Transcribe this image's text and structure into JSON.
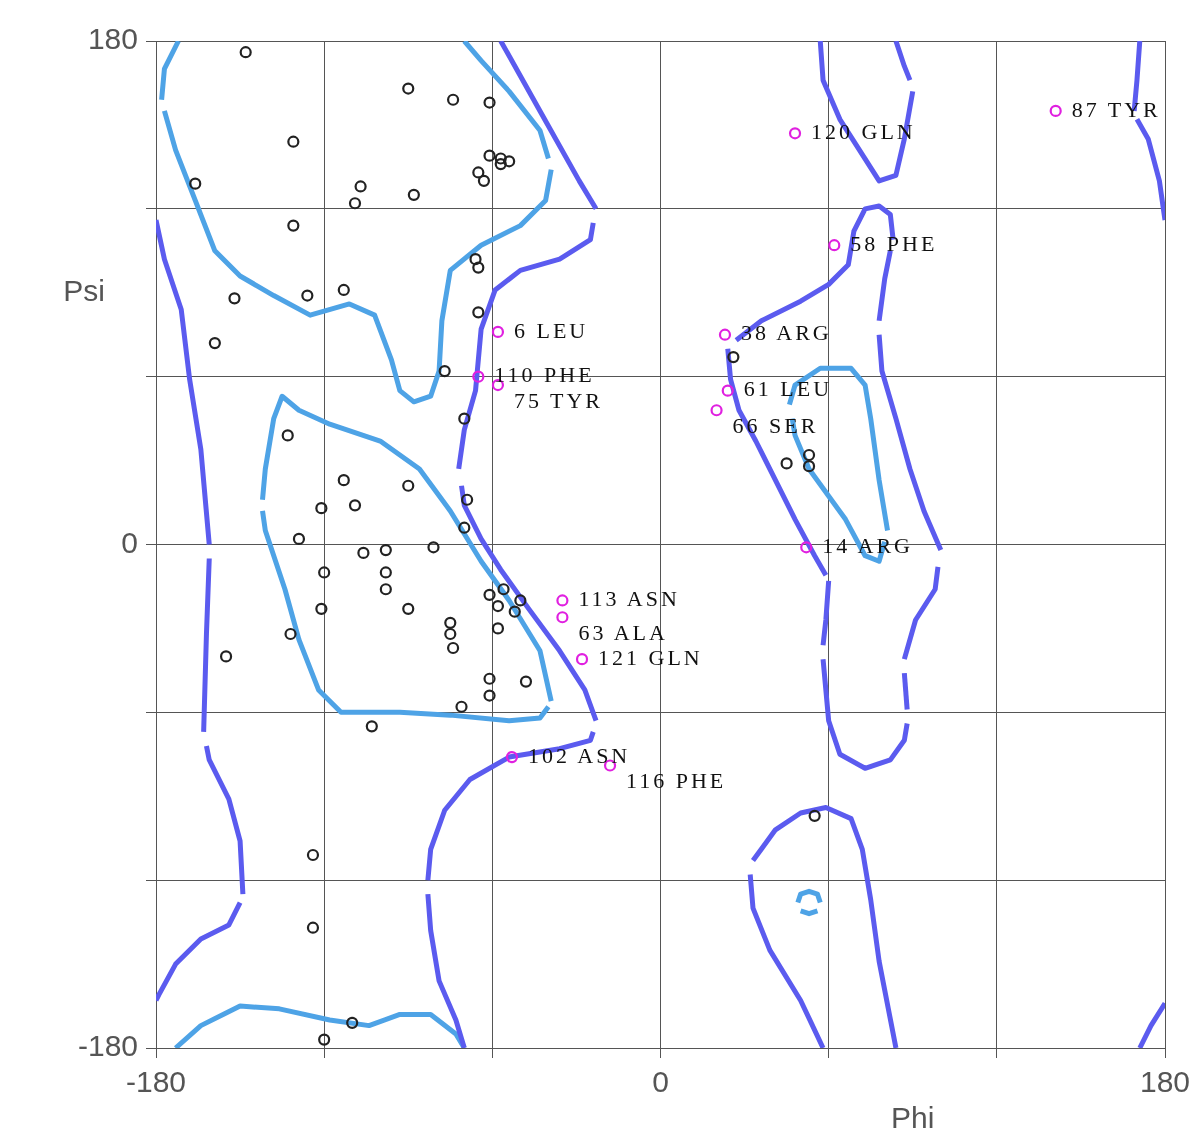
{
  "chart_data": {
    "type": "scatter",
    "xlabel": "Phi",
    "ylabel": "Psi",
    "xlim": [
      -180,
      180
    ],
    "ylim": [
      -180,
      180
    ],
    "xticks": [
      -180,
      {
        "value": -120,
        "label": null
      },
      {
        "value": -60,
        "label": null
      },
      0,
      {
        "value": 60,
        "label": null
      },
      {
        "value": 120,
        "label": null
      },
      180
    ],
    "yticks": [
      -180,
      {
        "value": -120,
        "label": null
      },
      {
        "value": -60,
        "label": null
      },
      0,
      {
        "value": 60,
        "label": null
      },
      {
        "value": 120,
        "label": null
      },
      180
    ],
    "grid": true,
    "legend": false,
    "series": [
      {
        "type": "line",
        "marker": "none",
        "color": "#5b5bef",
        "x": [
          -57,
          -43,
          -29,
          -23
        ],
        "values": [
          180,
          155,
          130,
          120
        ]
      },
      {
        "type": "line",
        "marker": "none",
        "color": "#5b5bef",
        "x": [
          -24,
          -25,
          -36,
          -50,
          -59,
          -64,
          -66,
          -70,
          -72
        ],
        "values": [
          115,
          109,
          102,
          98,
          91,
          77,
          55,
          41,
          27
        ]
      },
      {
        "type": "line",
        "marker": "none",
        "color": "#5b5bef",
        "x": [
          -71,
          -70,
          -64,
          -57,
          -47,
          -36,
          -27,
          -23
        ],
        "values": [
          21,
          14,
          2,
          -9,
          -23,
          -38,
          -52,
          -63
        ]
      },
      {
        "type": "line",
        "marker": "none",
        "color": "#5b5bef",
        "x": [
          -24,
          -25,
          -36,
          -54,
          -68,
          -77,
          -82,
          -83
        ],
        "values": [
          -67,
          -70,
          -73,
          -76,
          -84,
          -95,
          -109,
          -120
        ]
      },
      {
        "type": "line",
        "marker": "none",
        "color": "#5b5bef",
        "x": [
          -83,
          -82,
          -79,
          -73,
          -70
        ],
        "values": [
          -125,
          -138,
          -156,
          -170,
          -180
        ]
      },
      {
        "type": "line",
        "marker": "none",
        "color": "#5b5bef",
        "x": [
          -180,
          -177,
          -171,
          -168,
          -164,
          -161
        ],
        "values": [
          116,
          102,
          84,
          59,
          34,
          0
        ]
      },
      {
        "type": "line",
        "marker": "none",
        "color": "#5b5bef",
        "x": [
          -161,
          -162,
          -163
        ],
        "values": [
          -5,
          -32,
          -67
        ]
      },
      {
        "type": "line",
        "marker": "none",
        "color": "#5b5bef",
        "x": [
          -162,
          -161,
          -154,
          -150,
          -149
        ],
        "values": [
          -72,
          -77,
          -91,
          -106,
          -125
        ]
      },
      {
        "type": "line",
        "marker": "none",
        "color": "#5b5bef",
        "x": [
          -150,
          -154,
          -164,
          -173,
          -179,
          -180
        ],
        "values": [
          -128,
          -136,
          -141,
          -150,
          -161,
          -163
        ]
      },
      {
        "type": "line",
        "marker": "none",
        "color": "#5b5bef",
        "x": [
          57,
          58,
          64,
          71,
          78,
          84,
          87,
          90
        ],
        "values": [
          180,
          166,
          152,
          141,
          130,
          132,
          145,
          162
        ]
      },
      {
        "type": "line",
        "marker": "none",
        "color": "#5b5bef",
        "x": [
          89,
          87,
          84
        ],
        "values": [
          166,
          171,
          180
        ]
      },
      {
        "type": "line",
        "marker": "none",
        "color": "#5b5bef",
        "x": [
          171,
          170,
          169
        ],
        "values": [
          180,
          166,
          155
        ]
      },
      {
        "type": "line",
        "marker": "none",
        "color": "#5b5bef",
        "x": [
          170,
          174,
          178,
          180
        ],
        "values": [
          152,
          145,
          130,
          116
        ]
      },
      {
        "type": "line",
        "marker": "none",
        "color": "#5b5bef",
        "x": [
          171,
          175,
          180
        ],
        "values": [
          -180,
          -172,
          -164
        ]
      },
      {
        "type": "line",
        "marker": "none",
        "color": "#5b5bef",
        "x": [
          27,
          36,
          50,
          60,
          67,
          69,
          73,
          78,
          82,
          83
        ],
        "values": [
          73,
          80,
          87,
          93,
          100,
          112,
          120,
          121,
          118,
          109
        ]
      },
      {
        "type": "line",
        "marker": "none",
        "color": "#5b5bef",
        "x": [
          82,
          80,
          78
        ],
        "values": [
          105,
          95,
          80
        ]
      },
      {
        "type": "line",
        "marker": "none",
        "color": "#5b5bef",
        "x": [
          78,
          79,
          84,
          89,
          94,
          100
        ],
        "values": [
          75,
          62,
          45,
          27,
          12,
          -2
        ]
      },
      {
        "type": "line",
        "marker": "none",
        "color": "#5b5bef",
        "x": [
          99,
          98,
          91,
          87
        ],
        "values": [
          -8,
          -16,
          -27,
          -41
        ]
      },
      {
        "type": "line",
        "marker": "none",
        "color": "#5b5bef",
        "x": [
          87,
          88
        ],
        "values": [
          -46,
          -59
        ]
      },
      {
        "type": "line",
        "marker": "none",
        "color": "#5b5bef",
        "x": [
          88,
          87,
          82,
          73,
          64,
          60,
          58
        ],
        "values": [
          -64,
          -70,
          -77,
          -80,
          -75,
          -63,
          -41
        ]
      },
      {
        "type": "line",
        "marker": "none",
        "color": "#5b5bef",
        "x": [
          58,
          59,
          60
        ],
        "values": [
          -36,
          -27,
          -13
        ]
      },
      {
        "type": "line",
        "marker": "none",
        "color": "#5b5bef",
        "x": [
          59,
          55,
          48,
          41,
          34,
          28,
          25,
          24
        ],
        "values": [
          -11,
          -4,
          9,
          23,
          37,
          48,
          59,
          70
        ]
      },
      {
        "type": "line",
        "marker": "none",
        "color": "#5b5bef",
        "x": [
          58,
          50,
          39,
          33,
          32
        ],
        "values": [
          -180,
          -163,
          -145,
          -130,
          -118
        ]
      },
      {
        "type": "line",
        "marker": "none",
        "color": "#5b5bef",
        "x": [
          33,
          41,
          50,
          59,
          68,
          72,
          75,
          78,
          84
        ],
        "values": [
          -113,
          -102,
          -96,
          -94,
          -98,
          -109,
          -127,
          -149,
          -180
        ]
      },
      {
        "type": "line",
        "marker": "none",
        "color": "#4ea3e6",
        "x": [
          -172,
          -177,
          -178
        ],
        "values": [
          180,
          170,
          159
        ]
      },
      {
        "type": "line",
        "marker": "none",
        "color": "#4ea3e6",
        "x": [
          -177,
          -173,
          -166,
          -159,
          -150,
          -138,
          -125,
          -111,
          -102,
          -96,
          -93,
          -88,
          -82,
          -79,
          -78,
          -75,
          -64,
          -50,
          -41,
          -39
        ],
        "values": [
          155,
          141,
          123,
          105,
          96,
          89,
          82,
          86,
          82,
          66,
          55,
          51,
          53,
          62,
          80,
          98,
          107,
          114,
          123,
          134
        ]
      },
      {
        "type": "line",
        "marker": "none",
        "color": "#4ea3e6",
        "x": [
          -40,
          -43,
          -54,
          -64,
          -70
        ],
        "values": [
          138,
          148,
          162,
          173,
          180
        ]
      },
      {
        "type": "line",
        "marker": "none",
        "color": "#4ea3e6",
        "x": [
          -142,
          -141,
          -138,
          -135,
          -129,
          -118,
          -100,
          -86,
          -75,
          -64,
          -54,
          -43,
          -39
        ],
        "values": [
          16,
          27,
          45,
          53,
          48,
          43,
          37,
          27,
          12,
          -6,
          -20,
          -38,
          -56
        ]
      },
      {
        "type": "line",
        "marker": "none",
        "color": "#4ea3e6",
        "x": [
          -40,
          -43,
          -54,
          -75,
          -93,
          -114,
          -122,
          -129,
          -134,
          -141,
          -142
        ],
        "values": [
          -58,
          -62,
          -63,
          -61,
          -60,
          -60,
          -52,
          -34,
          -16,
          5,
          12
        ]
      },
      {
        "type": "line",
        "marker": "none",
        "color": "#4ea3e6",
        "x": [
          -173,
          -164,
          -150,
          -136,
          -118,
          -104,
          -93,
          -82,
          -73,
          -70
        ],
        "values": [
          -180,
          -172,
          -165,
          -166,
          -170,
          -172,
          -168,
          -168,
          -175,
          -180
        ]
      },
      {
        "type": "line",
        "marker": "none",
        "color": "#4ea3e6",
        "x": [
          46,
          48,
          57,
          68,
          73,
          75,
          78,
          81
        ],
        "values": [
          50,
          57,
          63,
          63,
          57,
          45,
          23,
          5
        ]
      },
      {
        "type": "line",
        "marker": "none",
        "color": "#4ea3e6",
        "x": [
          80,
          78,
          73,
          66,
          53,
          48,
          47
        ],
        "values": [
          1,
          -6,
          -4,
          9,
          27,
          39,
          45
        ]
      },
      {
        "type": "line",
        "marker": "none",
        "color": "#4ea3e6",
        "x": [
          49,
          50,
          53,
          56,
          57
        ],
        "values": [
          -128,
          -125,
          -124,
          -125,
          -128
        ]
      },
      {
        "type": "line",
        "marker": "none",
        "color": "#4ea3e6",
        "x": [
          50,
          53,
          56
        ],
        "values": [
          -131,
          -132,
          -131
        ]
      },
      {
        "marker": "circle",
        "color": "#222222",
        "x": [
          -148,
          -90,
          -74,
          -61,
          -131,
          -61,
          -57,
          -57,
          -54,
          -65,
          -63,
          -166,
          -107,
          -109,
          -88,
          -131,
          -66,
          -65,
          -152,
          -126,
          -113,
          -65,
          -159,
          -77,
          -70,
          -133,
          -113,
          -90,
          -69,
          -121,
          -109,
          -70,
          -129,
          -106,
          -98,
          -81,
          -120,
          -98,
          -98,
          -61,
          -56,
          -50,
          -58,
          -52,
          -121,
          -90,
          -75,
          -75,
          -74,
          -58,
          -132,
          -155,
          -61,
          -48,
          -61,
          -71,
          -103,
          -124,
          -124,
          -110,
          -120,
          26,
          45,
          53,
          53,
          55
        ],
        "values": [
          176,
          163,
          159,
          158,
          144,
          139,
          138,
          136,
          137,
          133,
          130,
          129,
          128,
          122,
          125,
          114,
          102,
          99,
          88,
          89,
          91,
          83,
          72,
          62,
          45,
          39,
          23,
          21,
          16,
          13,
          14,
          6,
          2,
          -3,
          -2,
          -1,
          -10,
          -10,
          -16,
          -18,
          -16,
          -20,
          -22,
          -24,
          -23,
          -23,
          -28,
          -32,
          -37,
          -30,
          -32,
          -40,
          -48,
          -49,
          -54,
          -58,
          -65,
          -111,
          -137,
          -171,
          -177,
          67,
          29,
          32,
          28,
          -97
        ]
      },
      {
        "marker": "circle",
        "color": "#e020e0",
        "x": [
          141,
          48,
          62,
          -58,
          23,
          -65,
          -58,
          24,
          20,
          52,
          -35,
          -35,
          -28,
          -53,
          -18
        ],
        "values": [
          155,
          147,
          107,
          76,
          75,
          60,
          57,
          55,
          48,
          -1,
          -20,
          -26,
          -41,
          -76,
          -79
        ]
      }
    ],
    "annotations": [
      {
        "text": "87 TYR",
        "x": 141,
        "y": 155
      },
      {
        "text": "120 GLN",
        "x": 48,
        "y": 147
      },
      {
        "text": "58 PHE",
        "x": 62,
        "y": 107
      },
      {
        "text": "6 LEU",
        "x": -58,
        "y": 76
      },
      {
        "text": "38 ARG",
        "x": 23,
        "y": 75
      },
      {
        "text": "110 PHE",
        "x": -65,
        "y": 60
      },
      {
        "text": "75 TYR",
        "x": -58,
        "y": 57
      },
      {
        "text": "61 LEU",
        "x": 24,
        "y": 55
      },
      {
        "text": "66 SER",
        "x": 20,
        "y": 48
      },
      {
        "text": "14 ARG",
        "x": 52,
        "y": -1
      },
      {
        "text": "113 ASN",
        "x": -35,
        "y": -20
      },
      {
        "text": "63 ALA",
        "x": -35,
        "y": -26
      },
      {
        "text": "121 GLN",
        "x": -28,
        "y": -41
      },
      {
        "text": "102 ASN",
        "x": -53,
        "y": -76
      },
      {
        "text": "116 PHE",
        "x": -18,
        "y": -79
      }
    ]
  }
}
